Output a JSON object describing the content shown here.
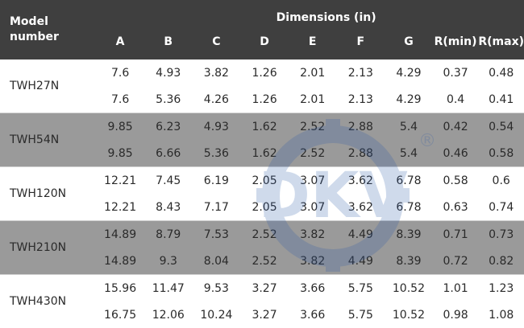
{
  "header": {
    "model_label": "Model number",
    "dimensions_label": "Dimensions (in)",
    "columns": [
      "A",
      "B",
      "C",
      "D",
      "E",
      "F",
      "G",
      "R(min)",
      "R(max)"
    ]
  },
  "rows": [
    {
      "model": "TWH27N",
      "shade": "white",
      "values": [
        [
          "7.6",
          "4.93",
          "3.82",
          "1.26",
          "2.01",
          "2.13",
          "4.29",
          "0.37",
          "0.48"
        ],
        [
          "7.6",
          "5.36",
          "4.26",
          "1.26",
          "2.01",
          "2.13",
          "4.29",
          "0.4",
          "0.41"
        ]
      ]
    },
    {
      "model": "TWH54N",
      "shade": "gray",
      "values": [
        [
          "9.85",
          "6.23",
          "4.93",
          "1.62",
          "2.52",
          "2.88",
          "5.4",
          "0.42",
          "0.54"
        ],
        [
          "9.85",
          "6.66",
          "5.36",
          "1.62",
          "2.52",
          "2.88",
          "5.4",
          "0.46",
          "0.58"
        ]
      ]
    },
    {
      "model": "TWH120N",
      "shade": "white",
      "values": [
        [
          "12.21",
          "7.45",
          "6.19",
          "2.05",
          "3.07",
          "3.62",
          "6.78",
          "0.58",
          "0.6"
        ],
        [
          "12.21",
          "8.43",
          "7.17",
          "2.05",
          "3.07",
          "3.62",
          "6.78",
          "0.63",
          "0.74"
        ]
      ]
    },
    {
      "model": "TWH210N",
      "shade": "gray",
      "values": [
        [
          "14.89",
          "8.79",
          "7.53",
          "2.52",
          "3.82",
          "4.49",
          "8.39",
          "0.71",
          "0.73"
        ],
        [
          "14.89",
          "9.3",
          "8.04",
          "2.52",
          "3.82",
          "4.49",
          "8.39",
          "0.72",
          "0.82"
        ]
      ]
    },
    {
      "model": "TWH430N",
      "shade": "white",
      "values": [
        [
          "15.96",
          "11.47",
          "9.53",
          "3.27",
          "3.66",
          "5.75",
          "10.52",
          "1.01",
          "1.23"
        ],
        [
          "16.75",
          "12.06",
          "10.24",
          "3.27",
          "3.66",
          "5.75",
          "10.52",
          "0.98",
          "1.08"
        ]
      ]
    }
  ],
  "watermark": {
    "text": "DKV",
    "registered": "®",
    "color": "#2a5aa8"
  }
}
